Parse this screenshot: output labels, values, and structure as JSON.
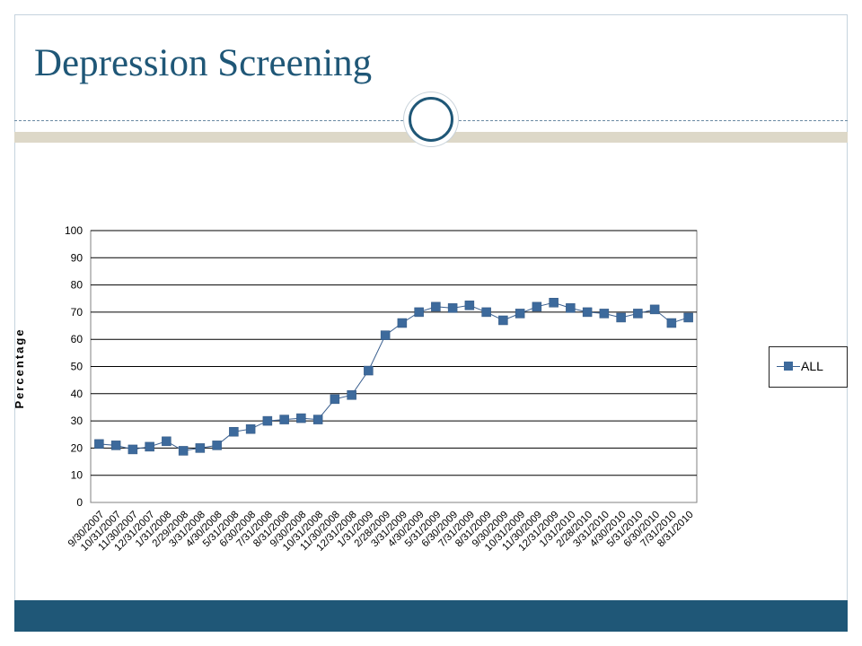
{
  "slide": {
    "title": "Depression Screening"
  },
  "colors": {
    "title": "#1f5777",
    "bottom_band": "#1f5777",
    "tan_band": "#ddd8c8",
    "series": "#3d6a9c"
  },
  "chart_data": {
    "type": "line",
    "title": "",
    "xlabel": "",
    "ylabel": "Percentage",
    "ylim": [
      0,
      100
    ],
    "yticks": [
      0,
      10,
      20,
      30,
      40,
      50,
      60,
      70,
      80,
      90,
      100
    ],
    "grid": true,
    "legend_position": "right",
    "x": [
      "9/30/2007",
      "10/31/2007",
      "11/30/2007",
      "12/31/2007",
      "1/31/2008",
      "2/29/2008",
      "3/31/2008",
      "4/30/2008",
      "5/31/2008",
      "6/30/2008",
      "7/31/2008",
      "8/31/2008",
      "9/30/2008",
      "10/31/2008",
      "11/30/2008",
      "12/31/2008",
      "1/31/2009",
      "2/28/2009",
      "3/31/2009",
      "4/30/2009",
      "5/31/2009",
      "6/30/2009",
      "7/31/2009",
      "8/31/2009",
      "9/30/2009",
      "10/31/2009",
      "11/30/2009",
      "12/31/2009",
      "1/31/2010",
      "2/28/2010",
      "3/31/2010",
      "4/30/2010",
      "5/31/2010",
      "6/30/2010",
      "7/31/2010",
      "8/31/2010"
    ],
    "series": [
      {
        "name": "ALL",
        "color": "#3d6a9c",
        "values": [
          21.5,
          21,
          19.5,
          20.5,
          22.5,
          19,
          20,
          21,
          26,
          27,
          30,
          30.5,
          31,
          30.5,
          38,
          39.5,
          48.5,
          61.5,
          66,
          70,
          72,
          71.5,
          72.5,
          70,
          67,
          69.5,
          72,
          73.5,
          71.5,
          70,
          69.5,
          68,
          69.5,
          71,
          66,
          68
        ]
      }
    ]
  }
}
